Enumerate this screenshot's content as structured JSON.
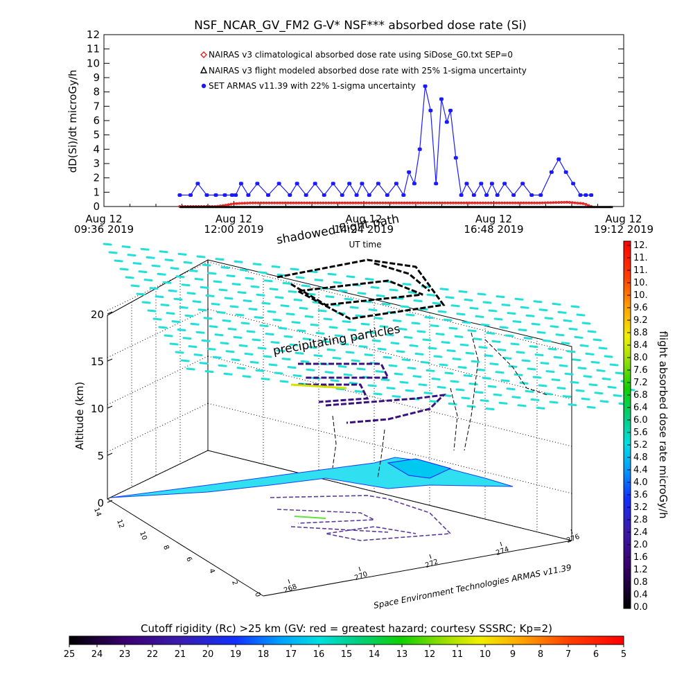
{
  "title": "NSF_NCAR_GV_FM2 G-V* NSF*** absorbed dose rate (Si)",
  "chart_data": [
    {
      "type": "line",
      "title": "NSF_NCAR_GV_FM2 G-V* NSF*** absorbed dose rate (Si)",
      "ylabel": "dD(Si)/dt microGy/h",
      "xlabel": "UT time",
      "ylim": [
        0,
        12
      ],
      "xlim_minutes": [
        576,
        1152
      ],
      "x_tick_labels": [
        [
          "Aug 12",
          "09:36 2019"
        ],
        [
          "Aug 12",
          "12:00 2019"
        ],
        [
          "Aug 12",
          "14:24 2019"
        ],
        [
          "Aug 12",
          "16:48 2019"
        ],
        [
          "Aug 12",
          "19:12 2019"
        ]
      ],
      "y_ticks": [
        "0",
        "1",
        "2",
        "3",
        "4",
        "5",
        "6",
        "7",
        "8",
        "9",
        "10",
        "11",
        "12"
      ],
      "legend": [
        {
          "name": "NAIRAS v3 climatological absorbed dose rate using SiDose_G0.txt SEP=0",
          "color": "#e02020",
          "marker": "diamond"
        },
        {
          "name": "NAIRAS v3 flight modeled absorbed dose rate with 25% 1-sigma uncertainty",
          "color": "#000000",
          "marker": "triangle"
        },
        {
          "name": "SET ARMAS v11.39 with 22% 1-sigma uncertainty",
          "color": "#1a1aff",
          "marker": "circle"
        }
      ],
      "series": [
        {
          "name": "SET ARMAS v11.39 with 22% 1-sigma uncertainty",
          "x": [
            660,
            672,
            680,
            690,
            700,
            710,
            718,
            722,
            728,
            736,
            746,
            758,
            770,
            782,
            790,
            800,
            810,
            820,
            830,
            840,
            848,
            856,
            862,
            870,
            880,
            890,
            900,
            908,
            914,
            920,
            926,
            932,
            938,
            944,
            950,
            956,
            960,
            966,
            972,
            978,
            986,
            994,
            1000,
            1006,
            1012,
            1020,
            1030,
            1040,
            1050,
            1060,
            1072,
            1080,
            1088,
            1096,
            1104,
            1110,
            1116
          ],
          "y": [
            0.8,
            0.8,
            1.6,
            0.8,
            0.8,
            0.8,
            0.8,
            0.8,
            1.6,
            0.8,
            1.6,
            0.8,
            1.6,
            0.8,
            1.6,
            0.8,
            1.6,
            0.8,
            1.6,
            0.8,
            1.6,
            0.8,
            1.6,
            0.8,
            1.6,
            0.8,
            1.6,
            0.8,
            2.4,
            1.6,
            4.0,
            8.4,
            6.7,
            1.6,
            7.5,
            5.9,
            6.7,
            3.4,
            0.8,
            1.6,
            0.8,
            1.6,
            0.8,
            1.6,
            0.8,
            1.6,
            0.8,
            1.6,
            0.8,
            0.8,
            2.4,
            3.3,
            2.4,
            1.6,
            0.8,
            0.8,
            0.8
          ]
        },
        {
          "name": "NAIRAS v3 climatological absorbed dose rate using SiDose_G0.txt SEP=0",
          "x": [
            660,
            680,
            700,
            712,
            720,
            740,
            780,
            820,
            860,
            900,
            940,
            980,
            1020,
            1060,
            1090,
            1108,
            1116
          ],
          "y": [
            0.0,
            0.0,
            0.0,
            0.1,
            0.2,
            0.25,
            0.25,
            0.25,
            0.25,
            0.25,
            0.25,
            0.25,
            0.25,
            0.25,
            0.3,
            0.2,
            0.0
          ]
        },
        {
          "name": "NAIRAS v3 flight modeled absorbed dose rate with 25% 1-sigma uncertainty",
          "x": [
            660,
            1140
          ],
          "y": [
            0.0,
            0.0
          ]
        }
      ]
    },
    {
      "type": "scatter",
      "title": "3-D flight track",
      "zlabel": "Altitude (km)",
      "z_ticks": [
        "0",
        "5",
        "10",
        "15",
        "20"
      ],
      "x_ticks": [
        "268",
        "270",
        "272",
        "274",
        "276"
      ],
      "y_ticks": [
        "14",
        "12",
        "10",
        "8",
        "6",
        "4",
        "2",
        "0"
      ],
      "annotations": [
        "shadowed flight path",
        "precipitating particles",
        "Space Environment Technologies ARMAS v11.39"
      ]
    }
  ],
  "colorbar_right": {
    "label": "flight absorbed dose rate microGy/h",
    "ticks": [
      "12.",
      "11.",
      "11.",
      "10.",
      "10.",
      "9.6",
      "9.2",
      "8.8",
      "8.4",
      "8.0",
      "7.6",
      "7.2",
      "6.8",
      "6.4",
      "6.0",
      "5.6",
      "5.2",
      "4.8",
      "4.4",
      "4.0",
      "3.6",
      "3.2",
      "2.8",
      "2.4",
      "2.0",
      "1.6",
      "1.2",
      "0.8",
      "0.4",
      "0.0"
    ]
  },
  "colorbar_bottom": {
    "label": "Cutoff rigidity (Rc) >25 km (GV: red = greatest hazard; courtesy SSSRC; Kp=2)",
    "ticks": [
      "25",
      "24",
      "23",
      "22",
      "21",
      "20",
      "19",
      "18",
      "17",
      "16",
      "15",
      "14",
      "13",
      "12",
      "11",
      "10",
      "9",
      "8",
      "7",
      "6",
      "5"
    ]
  }
}
